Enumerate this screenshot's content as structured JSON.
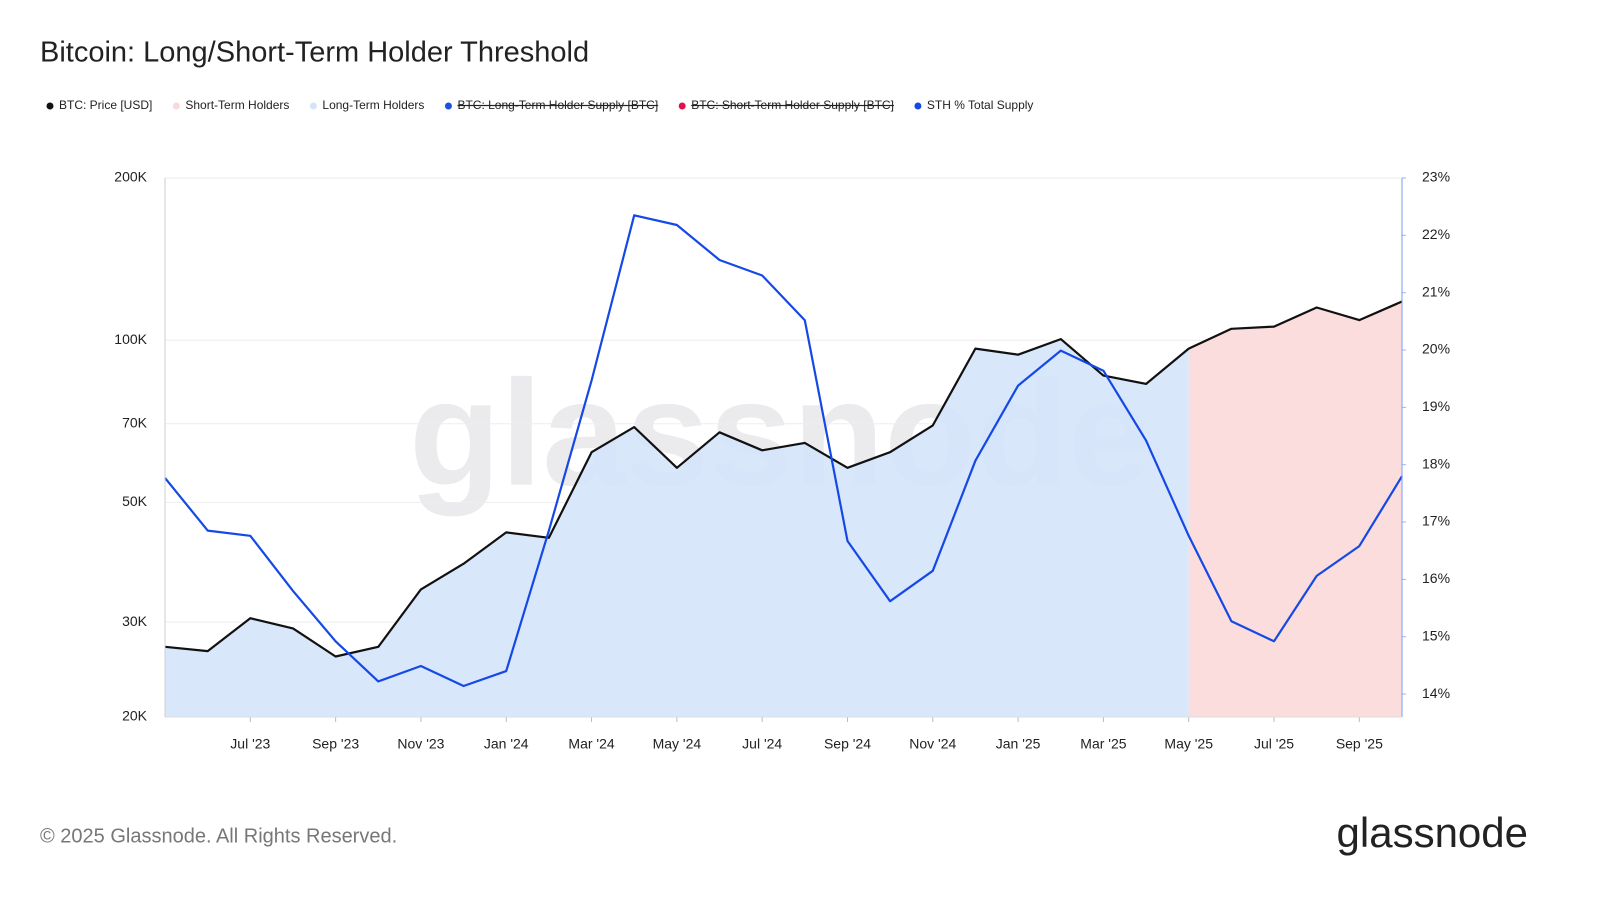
{
  "chart_data": {
    "type": "line",
    "title": "Bitcoin: Long/Short-Term Holder Threshold",
    "watermark": "glassnode",
    "footer": "© 2025 Glassnode. All Rights Reserved.",
    "logo": "glassnode",
    "y_scale": "log",
    "grid": true,
    "x": [
      "2023-05",
      "2023-06",
      "2023-07",
      "2023-08",
      "2023-09",
      "2023-10",
      "2023-11",
      "2023-12",
      "2024-01",
      "2024-02",
      "2024-03",
      "2024-04",
      "2024-05",
      "2024-06",
      "2024-07",
      "2024-08",
      "2024-09",
      "2024-10",
      "2024-11",
      "2024-12",
      "2025-01",
      "2025-02",
      "2025-03",
      "2025-04",
      "2025-05",
      "2025-06",
      "2025-07",
      "2025-08",
      "2025-09",
      "2025-10"
    ],
    "xlim": [
      "2023-05",
      "2025-10"
    ],
    "xticks": [
      {
        "value": "2023-07",
        "label": "Jul '23"
      },
      {
        "value": "2023-09",
        "label": "Sep '23"
      },
      {
        "value": "2023-11",
        "label": "Nov '23"
      },
      {
        "value": "2024-01",
        "label": "Jan '24"
      },
      {
        "value": "2024-03",
        "label": "Mar '24"
      },
      {
        "value": "2024-05",
        "label": "May '24"
      },
      {
        "value": "2024-07",
        "label": "Jul '24"
      },
      {
        "value": "2024-09",
        "label": "Sep '24"
      },
      {
        "value": "2024-11",
        "label": "Nov '24"
      },
      {
        "value": "2025-01",
        "label": "Jan '25"
      },
      {
        "value": "2025-03",
        "label": "Mar '25"
      },
      {
        "value": "2025-05",
        "label": "May '25"
      },
      {
        "value": "2025-07",
        "label": "Jul '25"
      },
      {
        "value": "2025-09",
        "label": "Sep '25"
      }
    ],
    "ylim": [
      20000,
      200000
    ],
    "yticks": [
      {
        "value": 20000,
        "label": "20K"
      },
      {
        "value": 30000,
        "label": "30K"
      },
      {
        "value": 50000,
        "label": "50K"
      },
      {
        "value": 70000,
        "label": "70K"
      },
      {
        "value": 100000,
        "label": "100K"
      },
      {
        "value": 200000,
        "label": "200K"
      }
    ],
    "y2lim": [
      13.6,
      23
    ],
    "y2ticks": [
      {
        "value": 14,
        "label": "14%"
      },
      {
        "value": 15,
        "label": "15%"
      },
      {
        "value": 16,
        "label": "16%"
      },
      {
        "value": 17,
        "label": "17%"
      },
      {
        "value": 18,
        "label": "18%"
      },
      {
        "value": 19,
        "label": "19%"
      },
      {
        "value": 20,
        "label": "20%"
      },
      {
        "value": 21,
        "label": "21%"
      },
      {
        "value": 22,
        "label": "22%"
      },
      {
        "value": 23,
        "label": "23%"
      }
    ],
    "series": [
      {
        "name": "BTC: Price [USD]",
        "color": "#111111",
        "kind": "line",
        "values": [
          27000,
          26500,
          30500,
          29200,
          25900,
          27000,
          34500,
          38500,
          44000,
          43000,
          62000,
          69000,
          58000,
          67500,
          62500,
          64500,
          58000,
          62000,
          69500,
          96500,
          94000,
          100500,
          86000,
          83000,
          96500,
          105000,
          106000,
          115000,
          109000,
          118000
        ]
      },
      {
        "name": "Short-Term Holders",
        "color": "#fcd9d9",
        "kind": "area",
        "values": [
          null,
          null,
          null,
          null,
          null,
          null,
          null,
          null,
          null,
          null,
          null,
          null,
          null,
          null,
          null,
          null,
          null,
          null,
          null,
          null,
          null,
          null,
          null,
          null,
          96500,
          105000,
          106000,
          115000,
          109000,
          118000
        ]
      },
      {
        "name": "Long-Term Holders",
        "color": "#d5e4fb",
        "kind": "area",
        "values": [
          27000,
          26500,
          30500,
          29200,
          25900,
          27000,
          34500,
          38500,
          44000,
          43000,
          62000,
          69000,
          58000,
          67500,
          62500,
          64500,
          58000,
          62000,
          69500,
          96500,
          94000,
          100500,
          86000,
          83000,
          96500,
          null,
          null,
          null,
          null,
          null
        ]
      },
      {
        "name": "BTC: Long-Term Holder Supply [BTC]",
        "color": "#1f4fe0",
        "hidden": true
      },
      {
        "name": "BTC: Short-Term Holder Supply [BTC]",
        "color": "#e3114a",
        "hidden": true
      },
      {
        "name": "STH % Total Supply",
        "color": "#1549e6",
        "kind": "line",
        "axis": "y2",
        "values": [
          17.77,
          16.85,
          16.76,
          15.8,
          14.92,
          14.22,
          14.49,
          14.14,
          14.4,
          16.85,
          19.47,
          22.35,
          22.18,
          21.57,
          21.3,
          20.52,
          16.67,
          15.62,
          16.15,
          18.07,
          19.38,
          19.99,
          19.64,
          18.42,
          16.76,
          15.27,
          14.92,
          16.06,
          16.58,
          17.8
        ]
      }
    ]
  }
}
